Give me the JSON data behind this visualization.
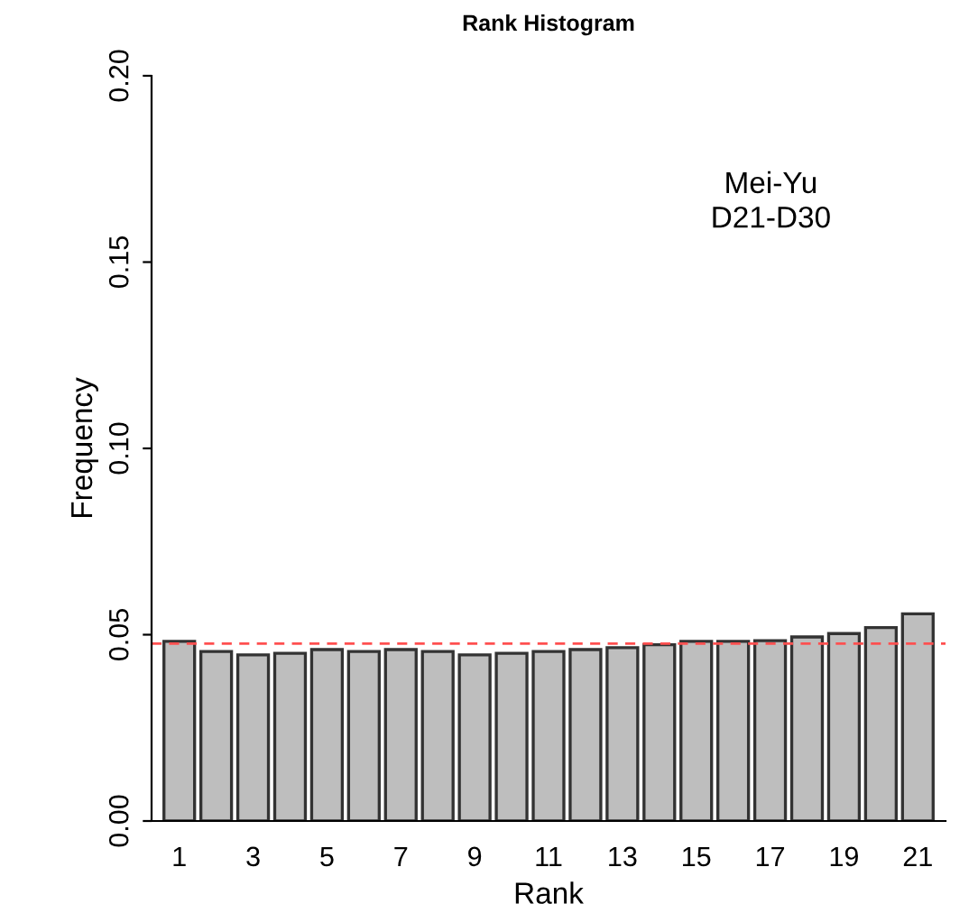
{
  "chart_data": {
    "type": "bar",
    "title": "Rank Histogram",
    "xlabel": "Rank",
    "ylabel": "Frequency",
    "categories": [
      "1",
      null,
      "3",
      null,
      "5",
      null,
      "7",
      null,
      "9",
      null,
      "11",
      null,
      "13",
      null,
      "15",
      null,
      "17",
      null,
      "19",
      null,
      "21"
    ],
    "values": [
      0.0482,
      0.0455,
      0.0446,
      0.045,
      0.046,
      0.0455,
      0.046,
      0.0455,
      0.0446,
      0.045,
      0.0455,
      0.046,
      0.0465,
      0.0473,
      0.0482,
      0.0482,
      0.0484,
      0.0494,
      0.0503,
      0.0519,
      0.0556
    ],
    "color": "#bebebe",
    "ylim": [
      0,
      0.2
    ],
    "yticks": [
      {
        "value": 0,
        "label": "0.00"
      },
      {
        "value": 0.05,
        "label": "0.05"
      },
      {
        "value": 0.1,
        "label": "0.10"
      },
      {
        "value": 0.15,
        "label": "0.15"
      },
      {
        "value": 0.2,
        "label": "0.20"
      }
    ],
    "ref_lines": [
      {
        "axis": "y",
        "value": 0.0476,
        "color": "#ff5050",
        "line_style": "dashed"
      }
    ],
    "annotations": [
      "Mei-Yu\nD21-D30"
    ],
    "grid": false,
    "legend": false
  }
}
